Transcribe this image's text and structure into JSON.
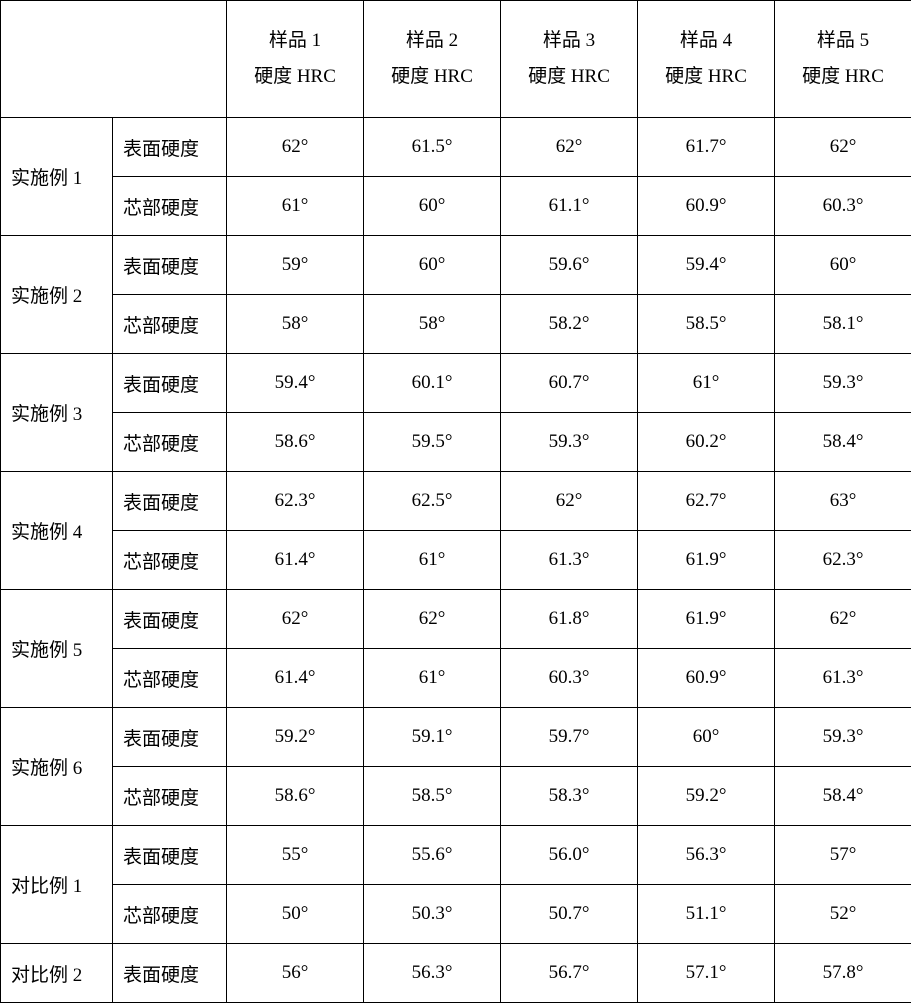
{
  "columns": [
    {
      "line1": "样品 1",
      "line2": "硬度 HRC"
    },
    {
      "line1": "样品 2",
      "line2": "硬度 HRC"
    },
    {
      "line1": "样品 3",
      "line2": "硬度 HRC"
    },
    {
      "line1": "样品 4",
      "line2": "硬度 HRC"
    },
    {
      "line1": "样品 5",
      "line2": "硬度 HRC"
    }
  ],
  "rowTypes": {
    "surface": "表面硬度",
    "core": "芯部硬度"
  },
  "groups": [
    {
      "label": "实施例 1",
      "rows": [
        {
          "type": "surface",
          "v": [
            "62°",
            "61.5°",
            "62°",
            "61.7°",
            "62°"
          ]
        },
        {
          "type": "core",
          "v": [
            "61°",
            "60°",
            "61.1°",
            "60.9°",
            "60.3°"
          ]
        }
      ]
    },
    {
      "label": "实施例 2",
      "rows": [
        {
          "type": "surface",
          "v": [
            "59°",
            "60°",
            "59.6°",
            "59.4°",
            "60°"
          ]
        },
        {
          "type": "core",
          "v": [
            "58°",
            "58°",
            "58.2°",
            "58.5°",
            "58.1°"
          ]
        }
      ]
    },
    {
      "label": "实施例 3",
      "rows": [
        {
          "type": "surface",
          "v": [
            "59.4°",
            "60.1°",
            "60.7°",
            "61°",
            "59.3°"
          ]
        },
        {
          "type": "core",
          "v": [
            "58.6°",
            "59.5°",
            "59.3°",
            "60.2°",
            "58.4°"
          ]
        }
      ]
    },
    {
      "label": "实施例 4",
      "rows": [
        {
          "type": "surface",
          "v": [
            "62.3°",
            "62.5°",
            "62°",
            "62.7°",
            "63°"
          ]
        },
        {
          "type": "core",
          "v": [
            "61.4°",
            "61°",
            "61.3°",
            "61.9°",
            "62.3°"
          ]
        }
      ]
    },
    {
      "label": "实施例 5",
      "rows": [
        {
          "type": "surface",
          "v": [
            "62°",
            "62°",
            "61.8°",
            "61.9°",
            "62°"
          ]
        },
        {
          "type": "core",
          "v": [
            "61.4°",
            "61°",
            "60.3°",
            "60.9°",
            "61.3°"
          ]
        }
      ]
    },
    {
      "label": "实施例 6",
      "rows": [
        {
          "type": "surface",
          "v": [
            "59.2°",
            "59.1°",
            "59.7°",
            "60°",
            "59.3°"
          ]
        },
        {
          "type": "core",
          "v": [
            "58.6°",
            "58.5°",
            "58.3°",
            "59.2°",
            "58.4°"
          ]
        }
      ]
    },
    {
      "label": "对比例 1",
      "rows": [
        {
          "type": "surface",
          "v": [
            "55°",
            "55.6°",
            "56.0°",
            "56.3°",
            "57°"
          ]
        },
        {
          "type": "core",
          "v": [
            "50°",
            "50.3°",
            "50.7°",
            "51.1°",
            "52°"
          ]
        }
      ]
    },
    {
      "label": "对比例 2",
      "rows": [
        {
          "type": "surface",
          "v": [
            "56°",
            "56.3°",
            "56.7°",
            "57.1°",
            "57.8°"
          ]
        }
      ]
    }
  ]
}
